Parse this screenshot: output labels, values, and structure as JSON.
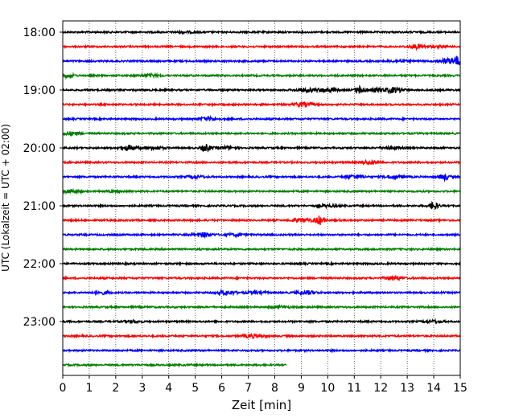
{
  "chart_data": {
    "type": "line",
    "title": "",
    "xlabel": "Zeit  [min]",
    "ylabel": "UTC (Lokalzeit = UTC + 02:00)",
    "xlim": [
      0,
      15
    ],
    "x_ticks": [
      "0",
      "1",
      "2",
      "3",
      "4",
      "5",
      "6",
      "7",
      "8",
      "9",
      "10",
      "11",
      "12",
      "13",
      "14",
      "15"
    ],
    "y_ticks": [
      {
        "label": "18:00",
        "trace": 0
      },
      {
        "label": "19:00",
        "trace": 4
      },
      {
        "label": "20:00",
        "trace": 8
      },
      {
        "label": "21:00",
        "trace": 12
      },
      {
        "label": "22:00",
        "trace": 16
      },
      {
        "label": "23:00",
        "trace": 20
      }
    ],
    "grid": {
      "x": true,
      "style": "dotted"
    },
    "colors": [
      "#000000",
      "#ff0000",
      "#0000ff",
      "#008000"
    ],
    "traces": [
      {
        "start": "18:00",
        "color": "#000000",
        "end_min": 15,
        "events": [
          {
            "t": 4.6,
            "a": 0.8
          }
        ]
      },
      {
        "start": "18:15",
        "color": "#ff0000",
        "end_min": 15,
        "events": [
          {
            "t": 13.4,
            "a": 2.2
          },
          {
            "t": 14.2,
            "a": 0.8
          }
        ]
      },
      {
        "start": "18:30",
        "color": "#0000ff",
        "end_min": 15,
        "events": [
          {
            "t": 12.7,
            "a": 1.2
          },
          {
            "t": 14.5,
            "a": 2.5
          },
          {
            "t": 14.9,
            "a": 5.0
          }
        ]
      },
      {
        "start": "18:45",
        "color": "#008000",
        "end_min": 15,
        "events": [
          {
            "t": 0.1,
            "a": 2.0
          },
          {
            "t": 3.3,
            "a": 1.5
          }
        ]
      },
      {
        "start": "19:00",
        "color": "#000000",
        "end_min": 15,
        "events": [
          {
            "t": 9.2,
            "a": 2.0
          },
          {
            "t": 10.0,
            "a": 2.5
          },
          {
            "t": 11.2,
            "a": 4.0
          },
          {
            "t": 11.8,
            "a": 2.0
          },
          {
            "t": 12.5,
            "a": 3.0
          }
        ]
      },
      {
        "start": "19:15",
        "color": "#ff0000",
        "end_min": 15,
        "events": [
          {
            "t": 9.1,
            "a": 2.5
          }
        ]
      },
      {
        "start": "19:30",
        "color": "#0000ff",
        "end_min": 15,
        "events": [
          {
            "t": 5.5,
            "a": 2.0
          }
        ]
      },
      {
        "start": "19:45",
        "color": "#008000",
        "end_min": 15,
        "events": [
          {
            "t": 0.3,
            "a": 2.0
          }
        ]
      },
      {
        "start": "20:00",
        "color": "#000000",
        "end_min": 15,
        "events": [
          {
            "t": 2.5,
            "a": 2.8
          },
          {
            "t": 3.5,
            "a": 1.5
          },
          {
            "t": 5.4,
            "a": 4.0
          },
          {
            "t": 6.2,
            "a": 1.5
          },
          {
            "t": 12.4,
            "a": 1.2
          }
        ]
      },
      {
        "start": "20:15",
        "color": "#ff0000",
        "end_min": 15,
        "events": [
          {
            "t": 11.6,
            "a": 2.0
          }
        ]
      },
      {
        "start": "20:30",
        "color": "#0000ff",
        "end_min": 15,
        "events": [
          {
            "t": 5.0,
            "a": 1.2
          },
          {
            "t": 11.0,
            "a": 2.0
          },
          {
            "t": 12.5,
            "a": 1.8
          },
          {
            "t": 14.4,
            "a": 3.5
          }
        ]
      },
      {
        "start": "20:45",
        "color": "#008000",
        "end_min": 15,
        "events": [
          {
            "t": 0.3,
            "a": 2.0
          },
          {
            "t": 2.0,
            "a": 1.0
          }
        ]
      },
      {
        "start": "21:00",
        "color": "#000000",
        "end_min": 15,
        "events": [
          {
            "t": 10.0,
            "a": 1.2
          },
          {
            "t": 14.0,
            "a": 4.0
          }
        ]
      },
      {
        "start": "21:15",
        "color": "#ff0000",
        "end_min": 15,
        "events": [
          {
            "t": 9.0,
            "a": 2.0
          },
          {
            "t": 9.7,
            "a": 5.0
          }
        ]
      },
      {
        "start": "21:30",
        "color": "#0000ff",
        "end_min": 15,
        "events": [
          {
            "t": 5.3,
            "a": 2.5
          },
          {
            "t": 6.5,
            "a": 1.2
          }
        ]
      },
      {
        "start": "21:45",
        "color": "#008000",
        "end_min": 15,
        "events": []
      },
      {
        "start": "22:00",
        "color": "#000000",
        "end_min": 15,
        "events": []
      },
      {
        "start": "22:15",
        "color": "#ff0000",
        "end_min": 15,
        "events": [
          {
            "t": 12.5,
            "a": 2.0
          }
        ]
      },
      {
        "start": "22:30",
        "color": "#0000ff",
        "end_min": 15,
        "events": [
          {
            "t": 1.5,
            "a": 1.5
          },
          {
            "t": 6.2,
            "a": 2.5
          },
          {
            "t": 7.3,
            "a": 1.5
          },
          {
            "t": 9.2,
            "a": 2.0
          }
        ]
      },
      {
        "start": "22:45",
        "color": "#008000",
        "end_min": 15,
        "events": [
          {
            "t": 8.2,
            "a": 1.2
          }
        ]
      },
      {
        "start": "23:00",
        "color": "#000000",
        "end_min": 15,
        "events": [
          {
            "t": 2.6,
            "a": 1.2
          },
          {
            "t": 14.0,
            "a": 1.2
          }
        ]
      },
      {
        "start": "23:15",
        "color": "#ff0000",
        "end_min": 15,
        "events": [
          {
            "t": 7.2,
            "a": 2.0
          }
        ]
      },
      {
        "start": "23:30",
        "color": "#0000ff",
        "end_min": 15,
        "events": []
      },
      {
        "start": "23:45",
        "color": "#008000",
        "end_min": 8.45,
        "events": []
      }
    ]
  }
}
